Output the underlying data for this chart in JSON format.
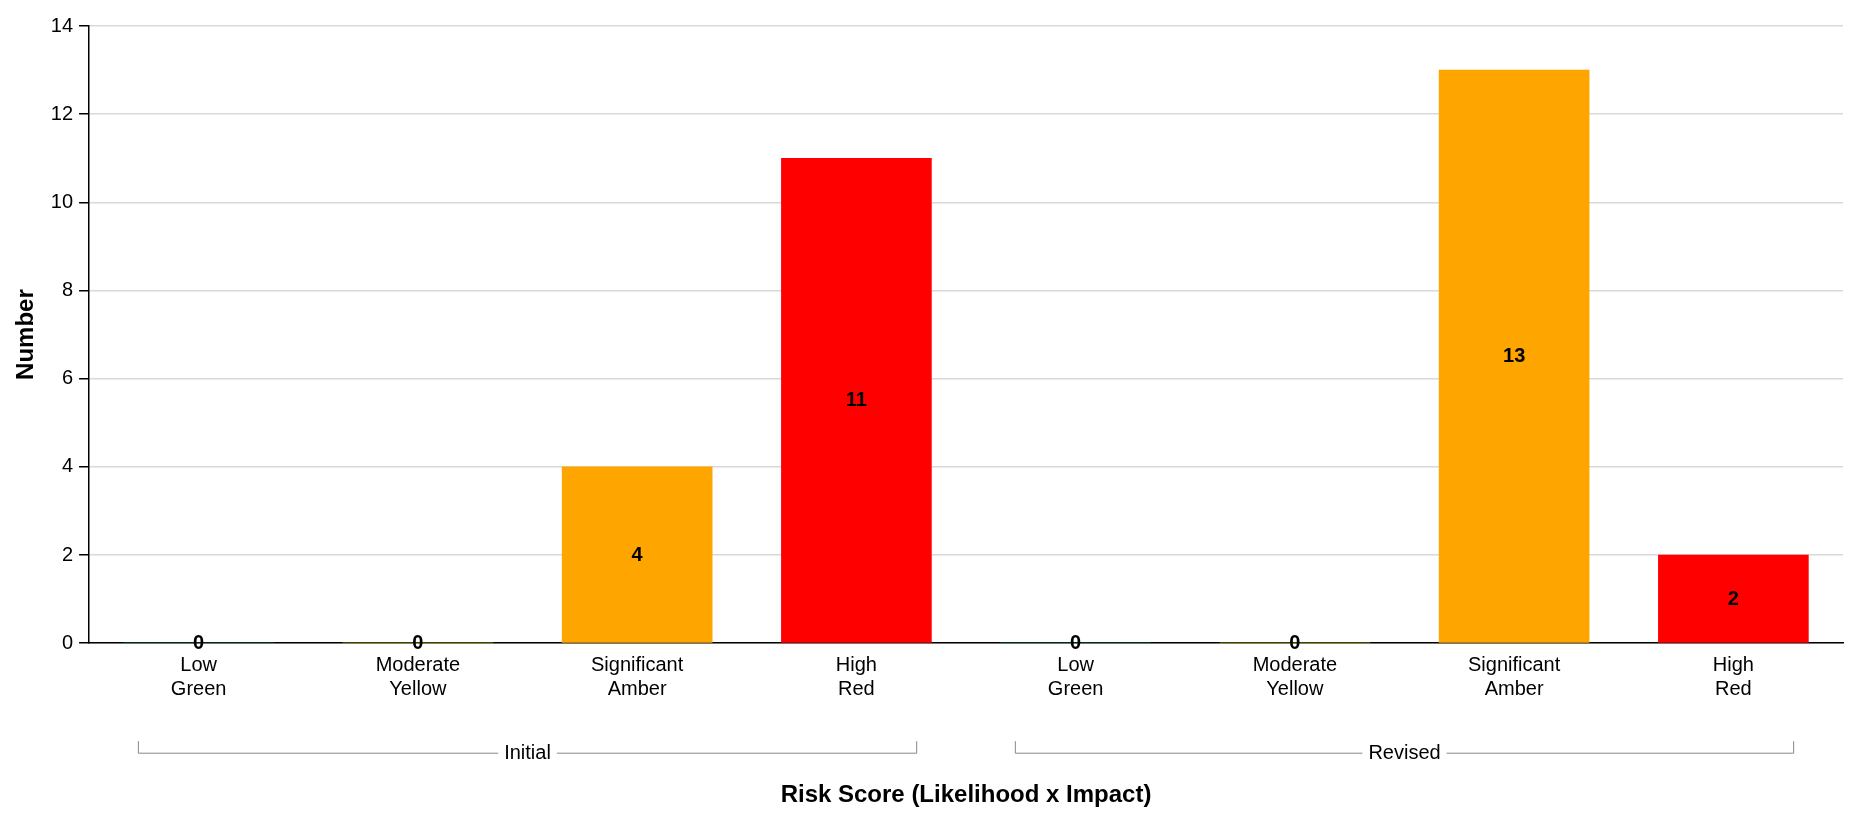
{
  "chart_data": {
    "type": "bar",
    "xlabel": "Risk Score (Likelihood x Impact)",
    "ylabel": "Number",
    "categories": [
      "Low\nGreen",
      "Moderate\nYellow",
      "Significant\nAmber",
      "High\nRed",
      "Low\nGreen",
      "Moderate\nYellow",
      "Significant\nAmber",
      "High\nRed"
    ],
    "values": [
      0,
      0,
      4,
      11,
      0,
      0,
      13,
      2
    ],
    "colors": [
      "#00b050",
      "#ffff00",
      "#ffa500",
      "#ff0000",
      "#00b050",
      "#ffff00",
      "#ffa500",
      "#ff0000"
    ],
    "ylim": [
      0,
      14
    ],
    "yticks": [
      0,
      2,
      4,
      6,
      8,
      10,
      12,
      14
    ],
    "grid": "y",
    "data_labels": true,
    "legend": false,
    "annotations": [
      "Initial",
      "Revised"
    ]
  }
}
